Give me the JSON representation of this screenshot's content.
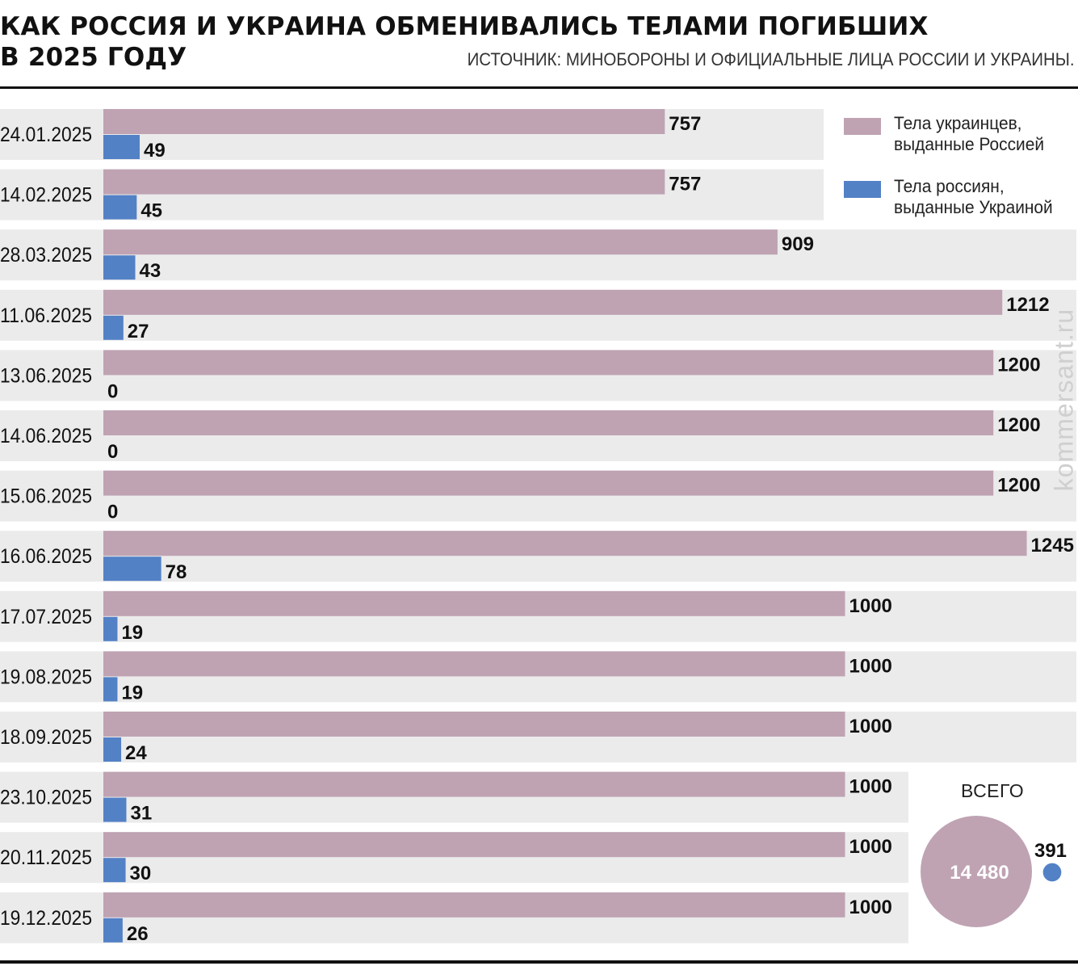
{
  "title_line1": "КАК РОССИЯ И УКРАИНА ОБМЕНИВАЛИСЬ ТЕЛАМИ ПОГИБШИХ",
  "title_line2": "В 2025 ГОДУ",
  "source": "ИСТОЧНИК: МИНОБОРОНЫ И ОФИЦИАЛЬНЫЕ ЛИЦА РОССИИ И УКРАИНЫ.",
  "watermark": "kommersant.ru",
  "colors": {
    "ukr": "#bfa3b3",
    "rus": "#5381c6",
    "row_bg": "#ebebeb"
  },
  "legend": [
    {
      "label": "Тела украинцев,\nвыданные Россией",
      "color": "#bfa3b3"
    },
    {
      "label": "Тела россиян,\nвыданные Украиной",
      "color": "#5381c6"
    }
  ],
  "totals": {
    "title": "ВСЕГО",
    "ukr_total": "14 480",
    "rus_total": "391",
    "ukr_value": 14480,
    "rus_value": 391
  },
  "chart_data": {
    "type": "bar",
    "orientation": "horizontal",
    "categories": [
      "24.01.2025",
      "14.02.2025",
      "28.03.2025",
      "11.06.2025",
      "13.06.2025",
      "14.06.2025",
      "15.06.2025",
      "16.06.2025",
      "17.07.2025",
      "19.08.2025",
      "18.09.2025",
      "23.10.2025",
      "20.11.2025",
      "19.12.2025"
    ],
    "series": [
      {
        "name": "Тела украинцев, выданные Россией",
        "values": [
          757,
          757,
          909,
          1212,
          1200,
          1200,
          1200,
          1245,
          1000,
          1000,
          1000,
          1000,
          1000,
          1000
        ]
      },
      {
        "name": "Тела россиян, выданные Украиной",
        "values": [
          49,
          45,
          43,
          27,
          0,
          0,
          0,
          78,
          19,
          19,
          24,
          31,
          30,
          26
        ]
      }
    ],
    "title": "КАК РОССИЯ И УКРАИНА ОБМЕНИВАЛИСЬ ТЕЛАМИ ПОГИБШИХ В 2025 ГОДУ",
    "xlim": [
      0,
      1245
    ],
    "grid": false,
    "legend_position": "top-right"
  }
}
